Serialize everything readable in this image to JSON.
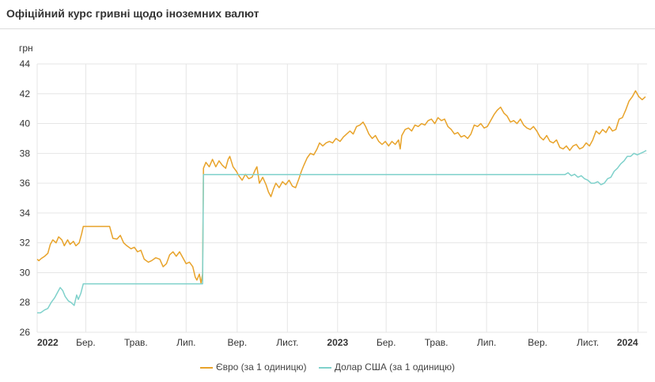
{
  "header": {
    "title": "Офіційний курс гривні щодо іноземних валют"
  },
  "chart_data": {
    "type": "line",
    "title": "Офіційний курс гривні щодо іноземних валют",
    "ylabel": "грн",
    "xlabel": "",
    "ylim": [
      26,
      44
    ],
    "yticks": [
      26,
      28,
      30,
      32,
      34,
      36,
      38,
      40,
      42,
      44
    ],
    "xlim": [
      "2022-01-01",
      "2024-01-12"
    ],
    "xticks": [
      {
        "date": "2022-01-01",
        "label": "2022",
        "bold": true
      },
      {
        "date": "2022-03-01",
        "label": "Бер.",
        "bold": false
      },
      {
        "date": "2022-05-01",
        "label": "Трав.",
        "bold": false
      },
      {
        "date": "2022-07-01",
        "label": "Лип.",
        "bold": false
      },
      {
        "date": "2022-09-01",
        "label": "Вер.",
        "bold": false
      },
      {
        "date": "2022-11-01",
        "label": "Лист.",
        "bold": false
      },
      {
        "date": "2023-01-01",
        "label": "2023",
        "bold": true
      },
      {
        "date": "2023-03-01",
        "label": "Бер.",
        "bold": false
      },
      {
        "date": "2023-05-01",
        "label": "Трав.",
        "bold": false
      },
      {
        "date": "2023-07-01",
        "label": "Лип.",
        "bold": false
      },
      {
        "date": "2023-09-01",
        "label": "Вер.",
        "bold": false
      },
      {
        "date": "2023-11-01",
        "label": "Лист.",
        "bold": false
      },
      {
        "date": "2024-01-01",
        "label": "2024",
        "bold": true
      }
    ],
    "grid": true,
    "legend_position": "bottom",
    "series": [
      {
        "name": "Євро (за 1 одиницю)",
        "color": "#e8a32a",
        "points": [
          [
            "2022-01-01",
            30.9
          ],
          [
            "2022-01-03",
            30.8
          ],
          [
            "2022-01-06",
            30.95
          ],
          [
            "2022-01-10",
            31.1
          ],
          [
            "2022-01-14",
            31.3
          ],
          [
            "2022-01-17",
            31.9
          ],
          [
            "2022-01-20",
            32.2
          ],
          [
            "2022-01-24",
            32.0
          ],
          [
            "2022-01-27",
            32.4
          ],
          [
            "2022-01-31",
            32.2
          ],
          [
            "2022-02-03",
            31.8
          ],
          [
            "2022-02-07",
            32.2
          ],
          [
            "2022-02-10",
            31.9
          ],
          [
            "2022-02-14",
            32.1
          ],
          [
            "2022-02-17",
            31.8
          ],
          [
            "2022-02-21",
            32.0
          ],
          [
            "2022-02-24",
            32.6
          ],
          [
            "2022-02-26",
            33.1
          ],
          [
            "2022-03-10",
            33.1
          ],
          [
            "2022-03-30",
            33.1
          ],
          [
            "2022-04-03",
            32.3
          ],
          [
            "2022-04-08",
            32.25
          ],
          [
            "2022-04-12",
            32.5
          ],
          [
            "2022-04-16",
            32.0
          ],
          [
            "2022-04-20",
            31.8
          ],
          [
            "2022-04-25",
            31.6
          ],
          [
            "2022-04-29",
            31.7
          ],
          [
            "2022-05-03",
            31.4
          ],
          [
            "2022-05-07",
            31.5
          ],
          [
            "2022-05-11",
            30.9
          ],
          [
            "2022-05-16",
            30.7
          ],
          [
            "2022-05-20",
            30.8
          ],
          [
            "2022-05-25",
            31.0
          ],
          [
            "2022-05-30",
            30.9
          ],
          [
            "2022-06-03",
            30.4
          ],
          [
            "2022-06-07",
            30.6
          ],
          [
            "2022-06-11",
            31.2
          ],
          [
            "2022-06-15",
            31.4
          ],
          [
            "2022-06-19",
            31.1
          ],
          [
            "2022-06-23",
            31.4
          ],
          [
            "2022-06-27",
            31.0
          ],
          [
            "2022-07-01",
            30.6
          ],
          [
            "2022-07-05",
            30.7
          ],
          [
            "2022-07-09",
            30.4
          ],
          [
            "2022-07-12",
            29.7
          ],
          [
            "2022-07-14",
            29.5
          ],
          [
            "2022-07-17",
            29.9
          ],
          [
            "2022-07-19",
            29.3
          ],
          [
            "2022-07-21",
            29.9
          ],
          [
            "2022-07-22",
            37.0
          ],
          [
            "2022-07-25",
            37.4
          ],
          [
            "2022-07-29",
            37.1
          ],
          [
            "2022-08-02",
            37.6
          ],
          [
            "2022-08-06",
            37.1
          ],
          [
            "2022-08-10",
            37.5
          ],
          [
            "2022-08-14",
            37.2
          ],
          [
            "2022-08-18",
            37.0
          ],
          [
            "2022-08-21",
            37.6
          ],
          [
            "2022-08-23",
            37.8
          ],
          [
            "2022-08-27",
            37.1
          ],
          [
            "2022-08-31",
            36.8
          ],
          [
            "2022-09-03",
            36.5
          ],
          [
            "2022-09-07",
            36.2
          ],
          [
            "2022-09-11",
            36.6
          ],
          [
            "2022-09-15",
            36.3
          ],
          [
            "2022-09-19",
            36.4
          ],
          [
            "2022-09-23",
            36.9
          ],
          [
            "2022-09-25",
            37.1
          ],
          [
            "2022-09-28",
            36.0
          ],
          [
            "2022-10-02",
            36.4
          ],
          [
            "2022-10-06",
            35.9
          ],
          [
            "2022-10-09",
            35.4
          ],
          [
            "2022-10-12",
            35.1
          ],
          [
            "2022-10-15",
            35.6
          ],
          [
            "2022-10-18",
            36.0
          ],
          [
            "2022-10-22",
            35.7
          ],
          [
            "2022-10-26",
            36.1
          ],
          [
            "2022-10-30",
            35.9
          ],
          [
            "2022-11-03",
            36.2
          ],
          [
            "2022-11-07",
            35.8
          ],
          [
            "2022-11-11",
            35.7
          ],
          [
            "2022-11-15",
            36.3
          ],
          [
            "2022-11-18",
            36.8
          ],
          [
            "2022-11-21",
            37.2
          ],
          [
            "2022-11-25",
            37.7
          ],
          [
            "2022-11-29",
            38.0
          ],
          [
            "2022-12-03",
            37.9
          ],
          [
            "2022-12-07",
            38.3
          ],
          [
            "2022-12-10",
            38.7
          ],
          [
            "2022-12-14",
            38.5
          ],
          [
            "2022-12-18",
            38.7
          ],
          [
            "2022-12-22",
            38.8
          ],
          [
            "2022-12-26",
            38.7
          ],
          [
            "2022-12-30",
            39.0
          ],
          [
            "2023-01-04",
            38.8
          ],
          [
            "2023-01-08",
            39.1
          ],
          [
            "2023-01-12",
            39.3
          ],
          [
            "2023-01-16",
            39.5
          ],
          [
            "2023-01-20",
            39.3
          ],
          [
            "2023-01-24",
            39.8
          ],
          [
            "2023-01-28",
            39.9
          ],
          [
            "2023-02-01",
            40.1
          ],
          [
            "2023-02-04",
            39.8
          ],
          [
            "2023-02-08",
            39.3
          ],
          [
            "2023-02-12",
            39.0
          ],
          [
            "2023-02-16",
            39.2
          ],
          [
            "2023-02-20",
            38.8
          ],
          [
            "2023-02-24",
            38.6
          ],
          [
            "2023-02-28",
            38.8
          ],
          [
            "2023-03-04",
            38.5
          ],
          [
            "2023-03-08",
            38.8
          ],
          [
            "2023-03-12",
            38.6
          ],
          [
            "2023-03-16",
            38.9
          ],
          [
            "2023-03-18",
            38.3
          ],
          [
            "2023-03-20",
            39.2
          ],
          [
            "2023-03-24",
            39.6
          ],
          [
            "2023-03-28",
            39.7
          ],
          [
            "2023-04-01",
            39.5
          ],
          [
            "2023-04-05",
            39.9
          ],
          [
            "2023-04-09",
            39.8
          ],
          [
            "2023-04-13",
            40.0
          ],
          [
            "2023-04-17",
            39.9
          ],
          [
            "2023-04-21",
            40.2
          ],
          [
            "2023-04-25",
            40.3
          ],
          [
            "2023-04-29",
            40.0
          ],
          [
            "2023-05-03",
            40.4
          ],
          [
            "2023-05-07",
            40.2
          ],
          [
            "2023-05-11",
            40.3
          ],
          [
            "2023-05-15",
            39.8
          ],
          [
            "2023-05-19",
            39.6
          ],
          [
            "2023-05-23",
            39.3
          ],
          [
            "2023-05-27",
            39.4
          ],
          [
            "2023-05-31",
            39.1
          ],
          [
            "2023-06-04",
            39.2
          ],
          [
            "2023-06-08",
            39.0
          ],
          [
            "2023-06-12",
            39.3
          ],
          [
            "2023-06-16",
            39.9
          ],
          [
            "2023-06-20",
            39.8
          ],
          [
            "2023-06-24",
            40.0
          ],
          [
            "2023-06-28",
            39.7
          ],
          [
            "2023-07-02",
            39.8
          ],
          [
            "2023-07-06",
            40.2
          ],
          [
            "2023-07-10",
            40.6
          ],
          [
            "2023-07-14",
            40.9
          ],
          [
            "2023-07-18",
            41.1
          ],
          [
            "2023-07-22",
            40.7
          ],
          [
            "2023-07-26",
            40.5
          ],
          [
            "2023-07-30",
            40.1
          ],
          [
            "2023-08-03",
            40.2
          ],
          [
            "2023-08-07",
            40.0
          ],
          [
            "2023-08-11",
            40.3
          ],
          [
            "2023-08-15",
            39.9
          ],
          [
            "2023-08-19",
            39.7
          ],
          [
            "2023-08-23",
            39.6
          ],
          [
            "2023-08-27",
            39.8
          ],
          [
            "2023-08-31",
            39.5
          ],
          [
            "2023-09-04",
            39.1
          ],
          [
            "2023-09-08",
            38.9
          ],
          [
            "2023-09-12",
            39.2
          ],
          [
            "2023-09-16",
            38.8
          ],
          [
            "2023-09-20",
            38.7
          ],
          [
            "2023-09-24",
            38.9
          ],
          [
            "2023-09-28",
            38.4
          ],
          [
            "2023-10-02",
            38.3
          ],
          [
            "2023-10-06",
            38.5
          ],
          [
            "2023-10-10",
            38.2
          ],
          [
            "2023-10-14",
            38.5
          ],
          [
            "2023-10-18",
            38.6
          ],
          [
            "2023-10-22",
            38.3
          ],
          [
            "2023-10-26",
            38.4
          ],
          [
            "2023-10-30",
            38.7
          ],
          [
            "2023-11-03",
            38.5
          ],
          [
            "2023-11-07",
            38.9
          ],
          [
            "2023-11-11",
            39.5
          ],
          [
            "2023-11-15",
            39.3
          ],
          [
            "2023-11-19",
            39.6
          ],
          [
            "2023-11-23",
            39.4
          ],
          [
            "2023-11-27",
            39.8
          ],
          [
            "2023-12-01",
            39.5
          ],
          [
            "2023-12-05",
            39.6
          ],
          [
            "2023-12-09",
            40.3
          ],
          [
            "2023-12-13",
            40.4
          ],
          [
            "2023-12-17",
            40.9
          ],
          [
            "2023-12-21",
            41.5
          ],
          [
            "2023-12-25",
            41.8
          ],
          [
            "2023-12-29",
            42.2
          ],
          [
            "2024-01-02",
            41.8
          ],
          [
            "2024-01-06",
            41.6
          ],
          [
            "2024-01-10",
            41.8
          ]
        ]
      },
      {
        "name": "Долар США (за 1 одиницю)",
        "color": "#7fd1cb",
        "points": [
          [
            "2022-01-01",
            27.3
          ],
          [
            "2022-01-05",
            27.3
          ],
          [
            "2022-01-10",
            27.5
          ],
          [
            "2022-01-14",
            27.6
          ],
          [
            "2022-01-18",
            28.0
          ],
          [
            "2022-01-22",
            28.3
          ],
          [
            "2022-01-26",
            28.7
          ],
          [
            "2022-01-29",
            29.0
          ],
          [
            "2022-02-01",
            28.8
          ],
          [
            "2022-02-04",
            28.4
          ],
          [
            "2022-02-08",
            28.1
          ],
          [
            "2022-02-11",
            28.0
          ],
          [
            "2022-02-15",
            27.8
          ],
          [
            "2022-02-18",
            28.5
          ],
          [
            "2022-02-20",
            28.2
          ],
          [
            "2022-02-23",
            28.6
          ],
          [
            "2022-02-26",
            29.25
          ],
          [
            "2022-07-21",
            29.25
          ],
          [
            "2022-07-22",
            36.57
          ],
          [
            "2023-10-04",
            36.57
          ],
          [
            "2023-10-08",
            36.7
          ],
          [
            "2023-10-12",
            36.5
          ],
          [
            "2023-10-16",
            36.6
          ],
          [
            "2023-10-20",
            36.4
          ],
          [
            "2023-10-24",
            36.5
          ],
          [
            "2023-10-28",
            36.3
          ],
          [
            "2023-11-01",
            36.2
          ],
          [
            "2023-11-05",
            36.0
          ],
          [
            "2023-11-09",
            36.0
          ],
          [
            "2023-11-13",
            36.1
          ],
          [
            "2023-11-17",
            35.9
          ],
          [
            "2023-11-21",
            36.0
          ],
          [
            "2023-11-25",
            36.3
          ],
          [
            "2023-11-29",
            36.4
          ],
          [
            "2023-12-03",
            36.8
          ],
          [
            "2023-12-07",
            37.0
          ],
          [
            "2023-12-11",
            37.3
          ],
          [
            "2023-12-15",
            37.5
          ],
          [
            "2023-12-19",
            37.8
          ],
          [
            "2023-12-23",
            37.8
          ],
          [
            "2023-12-27",
            38.0
          ],
          [
            "2023-12-31",
            37.9
          ],
          [
            "2024-01-04",
            38.0
          ],
          [
            "2024-01-08",
            38.1
          ],
          [
            "2024-01-11",
            38.2
          ]
        ]
      }
    ]
  }
}
